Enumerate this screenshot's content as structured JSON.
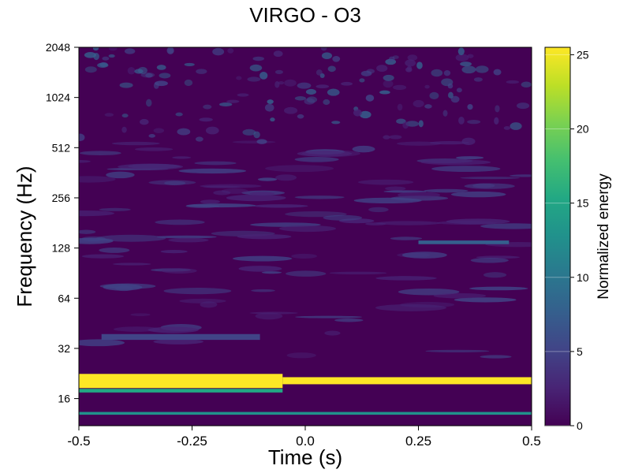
{
  "chart_data": {
    "type": "heatmap",
    "title": "VIRGO - O3",
    "xlabel": "Time (s)",
    "ylabel": "Frequency (Hz)",
    "xlim": [
      -0.5,
      0.5
    ],
    "ylim": [
      11,
      2048
    ],
    "yscale": "log2",
    "x_ticks": [
      -0.5,
      -0.25,
      0.0,
      0.25,
      0.5
    ],
    "x_tick_labels": [
      "-0.5",
      "-0.25",
      "0.0",
      "0.25",
      "0.5"
    ],
    "y_ticks": [
      16,
      32,
      64,
      128,
      256,
      512,
      1024,
      2048
    ],
    "y_tick_labels": [
      "16",
      "32",
      "64",
      "128",
      "256",
      "512",
      "1024",
      "2048"
    ],
    "colorbar": {
      "label": "Normalized energy",
      "range": [
        0,
        25.5
      ],
      "ticks": [
        0,
        5,
        10,
        15,
        20,
        25
      ],
      "tick_labels": [
        "0",
        "5",
        "10",
        "15",
        "20",
        "25"
      ],
      "colormap": "viridis"
    },
    "features": [
      {
        "t_start": -0.5,
        "t_end": -0.05,
        "f_low": 18.5,
        "f_high": 22.5,
        "energy": 25.5
      },
      {
        "t_start": -0.05,
        "t_end": 0.5,
        "f_low": 19.5,
        "f_high": 21.5,
        "energy": 25.5
      },
      {
        "t_start": -0.5,
        "t_end": 0.5,
        "f_low": 12.8,
        "f_high": 13.3,
        "energy": 12
      },
      {
        "t_start": -0.5,
        "t_end": -0.05,
        "f_low": 17.4,
        "f_high": 18.3,
        "energy": 15
      },
      {
        "t_start": -0.45,
        "t_end": -0.1,
        "f_low": 36,
        "f_high": 39,
        "energy": 6
      },
      {
        "t_start": 0.25,
        "t_end": 0.45,
        "f_low": 135,
        "f_high": 142,
        "energy": 8
      }
    ],
    "grid": false
  }
}
